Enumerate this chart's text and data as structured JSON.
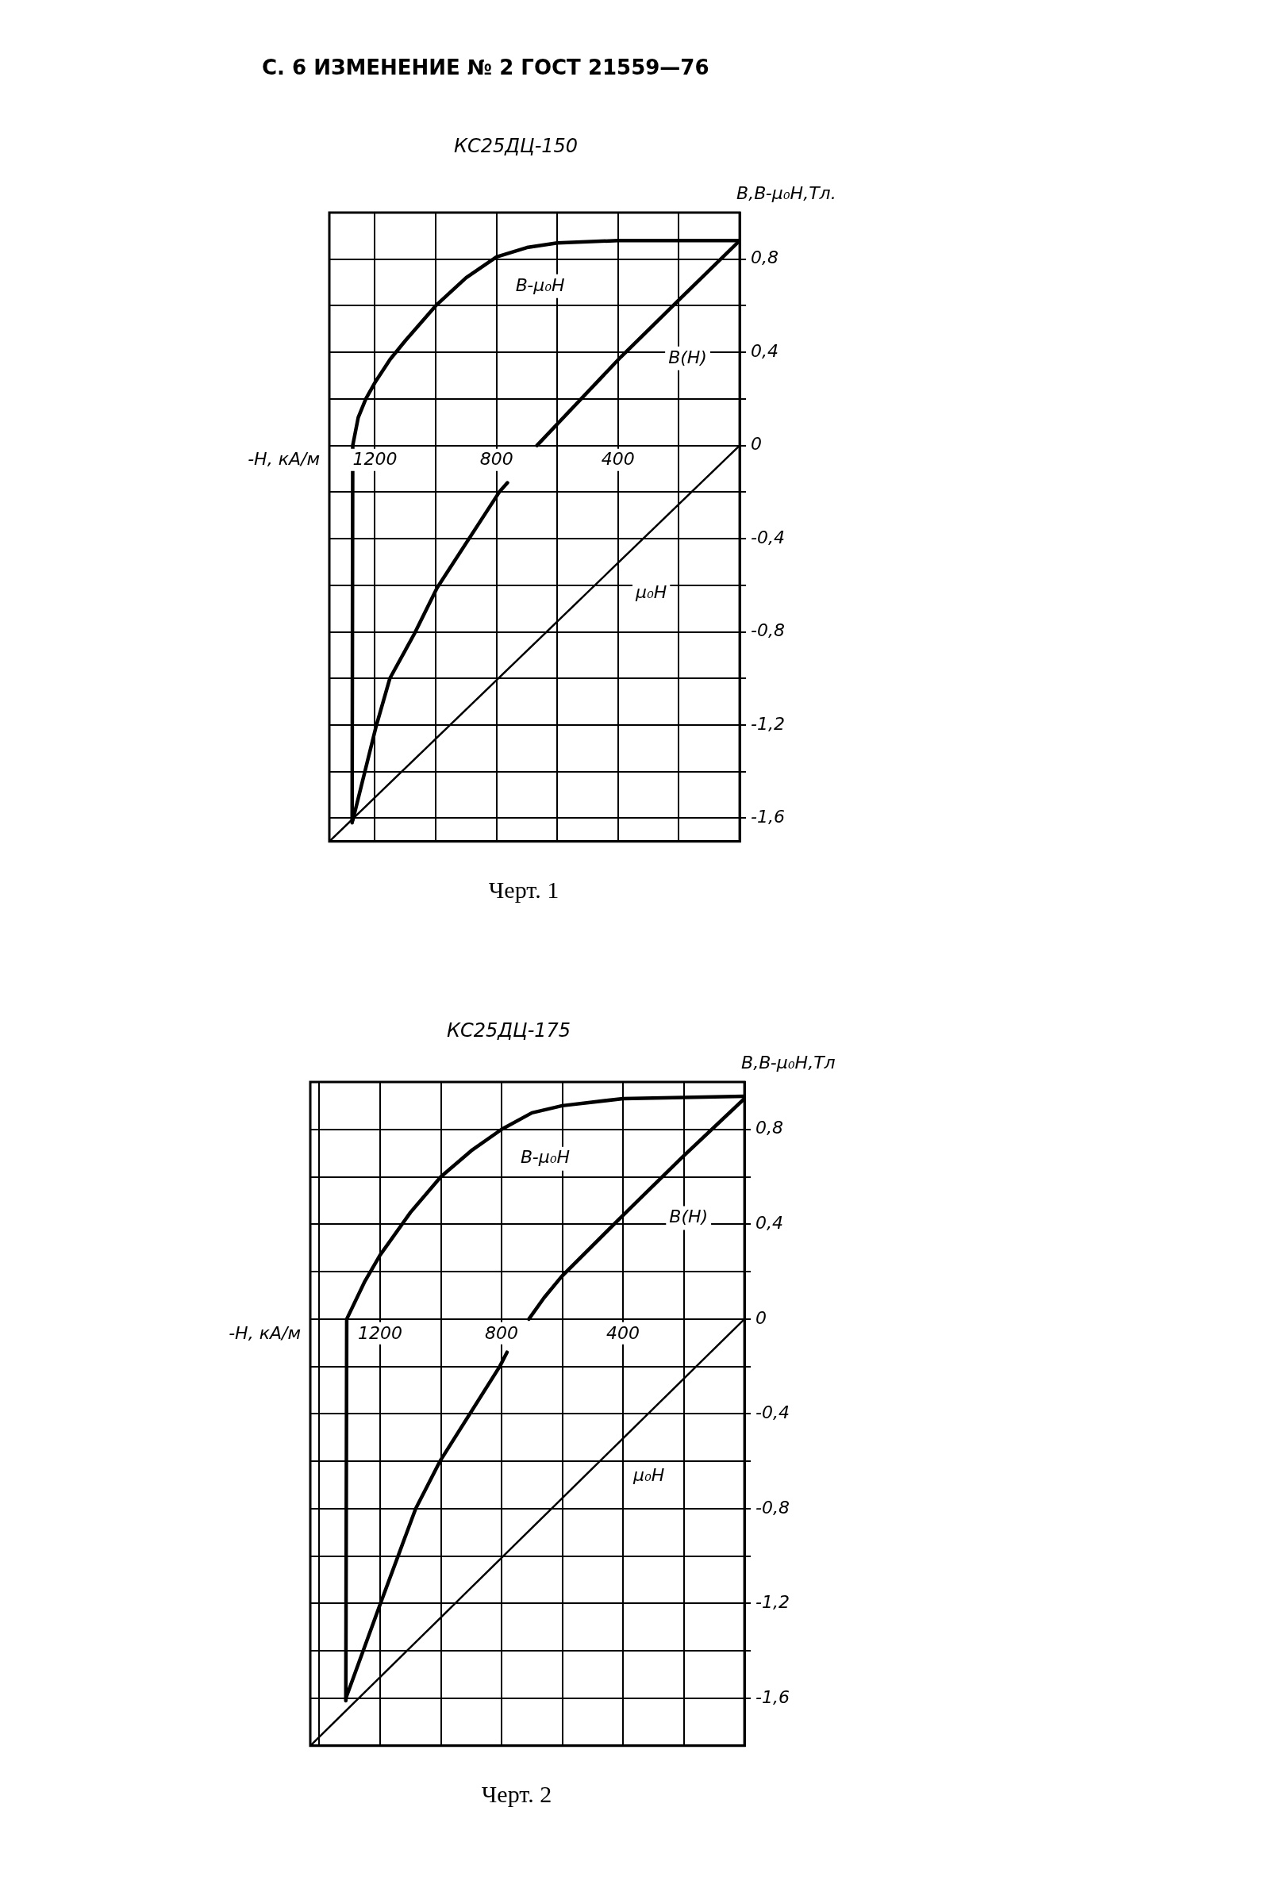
{
  "chart_data": [
    {
      "type": "line",
      "title": "КС25ДЦ-150",
      "xlabel": "-H, кА/м",
      "ylabel": "B,B-μ₀H,Тл.",
      "annotations": [
        "С. 6 ИЗМЕНЕНИЕ № 2 ГОСТ 21559—76",
        "Черт. 1"
      ],
      "xlim": [
        1350,
        0
      ],
      "ylim": [
        -1.7,
        1.0
      ],
      "xticks": [
        {
          "value": 0,
          "label": null
        },
        {
          "value": 200,
          "label": null
        },
        400,
        {
          "value": 600,
          "label": null
        },
        800,
        {
          "value": 1000,
          "label": null
        },
        1200
      ],
      "yticks": [
        {
          "value": -1.6,
          "label": "-1,6"
        },
        {
          "value": -1.4,
          "label": null
        },
        {
          "value": -1.2,
          "label": "-1,2"
        },
        {
          "value": -1.0,
          "label": null
        },
        {
          "value": -0.8,
          "label": "-0,8"
        },
        {
          "value": -0.6,
          "label": null
        },
        {
          "value": -0.4,
          "label": "-0,4"
        },
        {
          "value": -0.2,
          "label": null
        },
        0,
        {
          "value": 0.2,
          "label": null
        },
        {
          "value": 0.4,
          "label": "0,4"
        },
        {
          "value": 0.6,
          "label": null
        },
        {
          "value": 0.8,
          "label": "0,8"
        }
      ],
      "grid": true,
      "legend": false,
      "marker": "none",
      "line_style": "solid",
      "series": [
        {
          "name": "B-μ₀H",
          "color": "#000000",
          "x": [
            0,
            400,
            600,
            700,
            800,
            900,
            1000,
            1100,
            1150,
            1200,
            1230,
            1255,
            1273,
            1275
          ],
          "values": [
            0.88,
            0.88,
            0.87,
            0.85,
            0.81,
            0.72,
            0.6,
            0.45,
            0.37,
            0.27,
            0.2,
            0.12,
            0,
            -1.62
          ]
        },
        {
          "name": "B(H)",
          "color": "#000000",
          "x": [
            0,
            204,
            391,
            667,
            null,
            764,
            791,
            995,
            1071,
            1151,
            1197,
            1273
          ],
          "values": [
            0.88,
            0.62,
            0.38,
            0,
            null,
            -0.16,
            -0.2,
            -0.61,
            -0.81,
            -1.0,
            -1.21,
            -1.61
          ]
        },
        {
          "name": "μ₀H",
          "color": "#000000",
          "x": [
            0,
            1350
          ],
          "values": [
            0,
            -1.7
          ]
        }
      ]
    },
    {
      "type": "line",
      "title": "КС25ДЦ-175",
      "xlabel": "-H, кА/м",
      "ylabel": "B,B-μ₀H,Тл",
      "annotations": [
        "Черт. 2"
      ],
      "xlim": [
        1430,
        0
      ],
      "ylim": [
        -1.8,
        1.0
      ],
      "xticks": [
        {
          "value": 0,
          "label": null
        },
        {
          "value": 200,
          "label": null
        },
        400,
        {
          "value": 600,
          "label": null
        },
        800,
        {
          "value": 1000,
          "label": null
        },
        1200,
        {
          "value": 1400,
          "label": null
        }
      ],
      "yticks": [
        {
          "value": -1.6,
          "label": "-1,6"
        },
        {
          "value": -1.4,
          "label": null
        },
        {
          "value": -1.2,
          "label": "-1,2"
        },
        {
          "value": -1.0,
          "label": null
        },
        {
          "value": -0.8,
          "label": "-0,8"
        },
        {
          "value": -0.6,
          "label": null
        },
        {
          "value": -0.4,
          "label": "-0,4"
        },
        {
          "value": -0.2,
          "label": null
        },
        0,
        {
          "value": 0.2,
          "label": null
        },
        {
          "value": 0.4,
          "label": "0,4"
        },
        {
          "value": 0.6,
          "label": null
        },
        {
          "value": 0.8,
          "label": "0,8"
        }
      ],
      "grid": true,
      "legend": false,
      "marker": "none",
      "line_style": "solid",
      "series": [
        {
          "name": "B-μ₀H",
          "color": "#000000",
          "x": [
            0,
            400,
            600,
            700,
            800,
            900,
            1000,
            1100,
            1200,
            1250,
            1310,
            1313
          ],
          "values": [
            0.94,
            0.93,
            0.9,
            0.87,
            0.8,
            0.71,
            0.6,
            0.45,
            0.27,
            0.16,
            0,
            -1.61
          ]
        },
        {
          "name": "B(H)",
          "color": "#000000",
          "x": [
            0,
            207,
            414,
            602,
            660,
            710,
            null,
            782,
            806,
            1003,
            1083,
            1199,
            1313
          ],
          "values": [
            0.93,
            0.68,
            0.42,
            0.18,
            0.09,
            0,
            null,
            -0.14,
            -0.2,
            -0.6,
            -0.8,
            -1.2,
            -1.6
          ]
        },
        {
          "name": "μ₀H",
          "color": "#000000",
          "x": [
            0,
            1430
          ],
          "values": [
            0,
            -1.8
          ]
        }
      ]
    }
  ]
}
